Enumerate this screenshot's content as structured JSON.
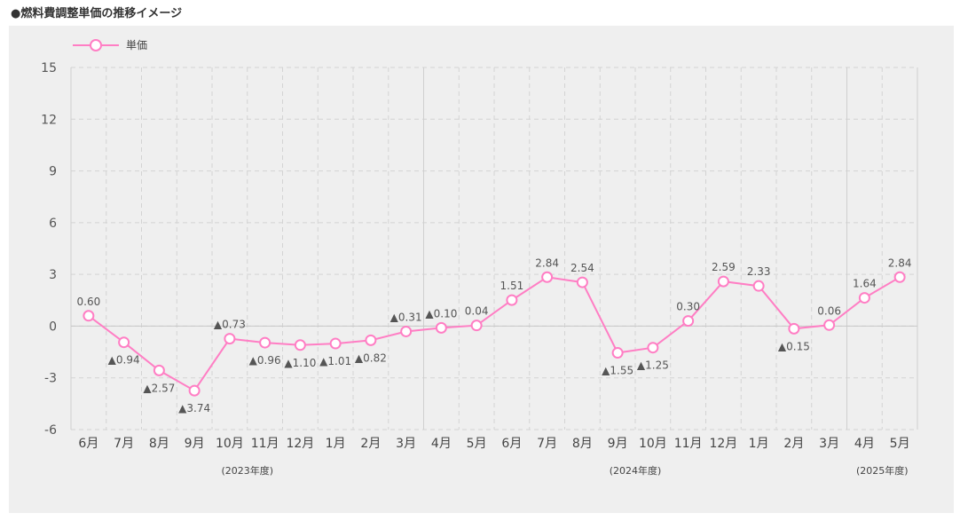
{
  "page": {
    "title": "●燃料費調整単価の推移イメージ"
  },
  "chart_data": {
    "type": "line",
    "legend": {
      "label": "単価",
      "placement": "top-left"
    },
    "colors": {
      "series": "#ff7ec4",
      "background": "#efefef",
      "grid": "#d3d3d3"
    },
    "categories": [
      "6月",
      "7月",
      "8月",
      "9月",
      "10月",
      "11月",
      "12月",
      "1月",
      "2月",
      "3月",
      "4月",
      "5月",
      "6月",
      "7月",
      "8月",
      "9月",
      "10月",
      "11月",
      "12月",
      "1月",
      "2月",
      "3月",
      "4月",
      "5月"
    ],
    "series": [
      {
        "name": "単価",
        "values": [
          0.6,
          -0.94,
          -2.57,
          -3.74,
          -0.73,
          -0.96,
          -1.1,
          -1.01,
          -0.82,
          -0.31,
          -0.1,
          0.04,
          1.51,
          2.84,
          2.54,
          -1.55,
          -1.25,
          0.3,
          2.59,
          2.33,
          -0.15,
          0.06,
          1.64,
          2.84
        ]
      }
    ],
    "data_labels": [
      "0.60",
      "▲0.94",
      "▲2.57",
      "▲3.74",
      "▲0.73",
      "▲0.96",
      "▲1.10",
      "▲1.01",
      "▲0.82",
      "▲0.31",
      "▲0.10",
      "0.04",
      "1.51",
      "2.84",
      "2.54",
      "▲1.55",
      "▲1.25",
      "0.30",
      "2.59",
      "2.33",
      "▲0.15",
      "0.06",
      "1.64",
      "2.84"
    ],
    "yticks": [
      "15",
      "12",
      "9",
      "6",
      "3",
      "0",
      "-3",
      "-6"
    ],
    "ylim": [
      -6,
      15
    ],
    "fiscal_groups": [
      {
        "label": "(2023年度)",
        "start": 0,
        "end": 9
      },
      {
        "label": "(2024年度)",
        "start": 10,
        "end": 21
      },
      {
        "label": "(2025年度)",
        "start": 22,
        "end": 23
      }
    ],
    "grid": true,
    "xlabel": "",
    "ylabel": ""
  }
}
